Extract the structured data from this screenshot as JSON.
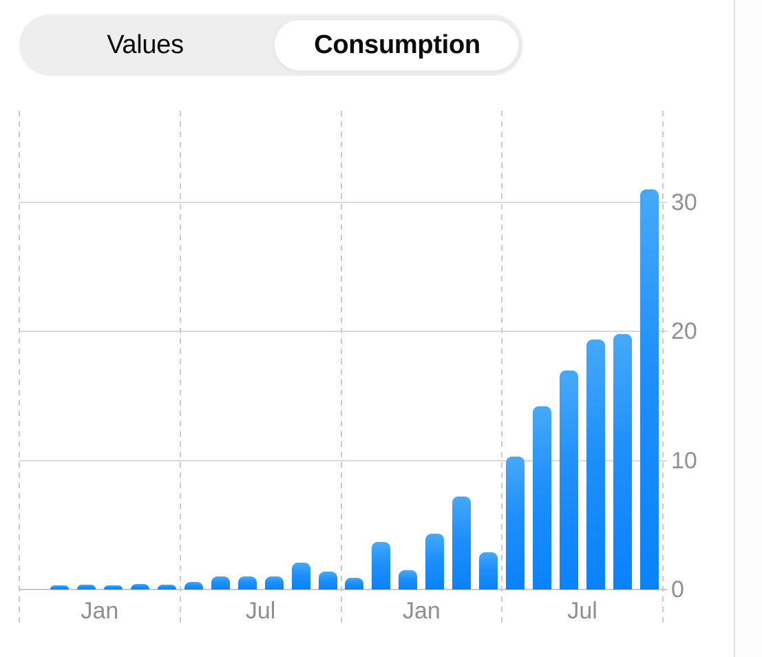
{
  "segmented_control": {
    "options": [
      {
        "label": "Values",
        "selected": false
      },
      {
        "label": "Consumption",
        "selected": true
      }
    ]
  },
  "colors": {
    "bar_gradient_top": "#45A9F8",
    "bar_gradient_bottom": "#0A82FE",
    "gridline": "#DADADE",
    "baseline": "#C7C7CC",
    "dashed_line": "#C9C9CE",
    "axis_label": "#8E8E93",
    "segment_bg": "#EEEEEF",
    "segment_pill": "#FFFFFF"
  },
  "chart_data": {
    "type": "bar",
    "title": "",
    "xlabel": "",
    "ylabel": "",
    "values": [
      null,
      0.3,
      0.35,
      0.3,
      0.45,
      0.4,
      0.6,
      1.0,
      1.0,
      1.0,
      2.1,
      1.4,
      0.9,
      3.7,
      1.5,
      4.3,
      7.2,
      2.9,
      10.3,
      14.2,
      17.0,
      19.4,
      19.8,
      31.0
    ],
    "note": "24 monthly bars over two years; first slot has no bar",
    "x_tick_labels": [
      "Jan",
      "Jul",
      "Jan",
      "Jul"
    ],
    "y_ticks": [
      0,
      10,
      20,
      30
    ],
    "y_tick_labels": [
      "0",
      "10",
      "20",
      "30"
    ],
    "ylim": [
      0,
      37.1
    ],
    "grid": "horizontal solid lines at y ticks, dashed vertical lines at 6-month section boundaries",
    "legend": "none",
    "y_axis_side": "right"
  }
}
